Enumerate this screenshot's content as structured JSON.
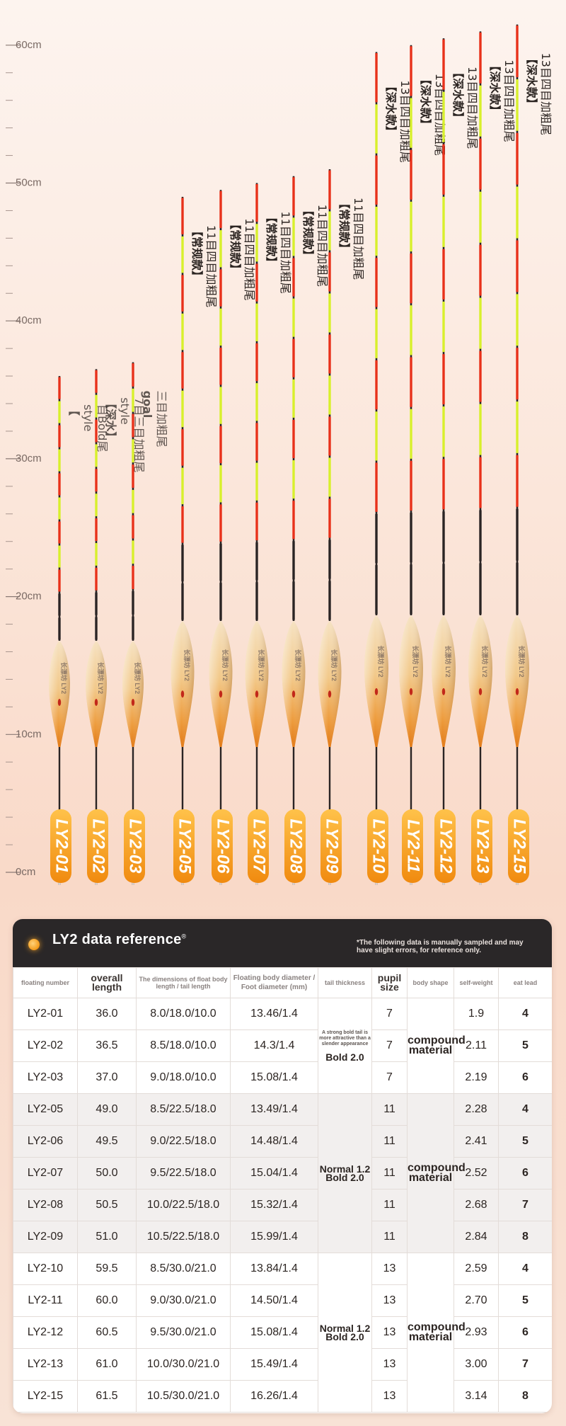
{
  "ruler": {
    "labels": [
      "60cm",
      "50cm",
      "40cm",
      "30cm",
      "20cm",
      "10cm",
      "0cm"
    ],
    "max_cm": 60
  },
  "floats": [
    {
      "model": "LY2-01",
      "height_cm": 36.0,
      "body": "short",
      "caption": [
        "【",
        "style",
        "目Bold尾"
      ],
      "blurred": true
    },
    {
      "model": "LY2-02",
      "height_cm": 36.5,
      "body": "short",
      "caption": [
        "【深水】",
        "style",
        "7目三目加粗尾"
      ],
      "blurred": true
    },
    {
      "model": "LY2-03",
      "height_cm": 37.0,
      "body": "short",
      "caption": [
        "goal",
        "三目加粗尾"
      ],
      "blurred": true
    },
    {
      "model": "LY2-05",
      "height_cm": 49.0,
      "body": "mid",
      "caption": [
        "【常规款】",
        "11目四目加粗尾"
      ]
    },
    {
      "model": "LY2-06",
      "height_cm": 49.5,
      "body": "mid",
      "caption": [
        "【常规款】",
        "11目四目加粗尾"
      ]
    },
    {
      "model": "LY2-07",
      "height_cm": 50.0,
      "body": "mid",
      "caption": [
        "【常规款】",
        "11目四目加粗尾"
      ]
    },
    {
      "model": "LY2-08",
      "height_cm": 50.5,
      "body": "mid",
      "caption": [
        "【常规款】",
        "11目四目加粗尾"
      ]
    },
    {
      "model": "LY2-09",
      "height_cm": 51.0,
      "body": "mid",
      "caption": [
        "【常规款】",
        "11目四目加粗尾"
      ]
    },
    {
      "model": "LY2-10",
      "height_cm": 59.5,
      "body": "long",
      "caption": [
        "【深水款】",
        "13目四目加粗尾"
      ]
    },
    {
      "model": "LY2-11",
      "height_cm": 60.0,
      "body": "long",
      "caption": [
        "【深水款】",
        "13目四目加粗尾"
      ]
    },
    {
      "model": "LY2-12",
      "height_cm": 60.5,
      "body": "long",
      "caption": [
        "【深水款】",
        "13目四目加粗尾"
      ]
    },
    {
      "model": "LY2-13",
      "height_cm": 61.0,
      "body": "long",
      "caption": [
        "【深水款】",
        "13目四目加粗尾"
      ]
    },
    {
      "model": "LY2-15",
      "height_cm": 61.5,
      "body": "long",
      "caption": [
        "【深水款】",
        "13目四目加粗尾"
      ]
    }
  ],
  "float_body_text": "长漂坊 LY2",
  "card": {
    "title": "LY2 data reference",
    "title_mark": "®",
    "note": "*The following data is manually sampled and may have slight errors, for reference only."
  },
  "table": {
    "headers": {
      "number": "floating number",
      "length": "overall length",
      "spec": "The dimensions of float body length / tail length",
      "diameter": "Floating body diameter / Foot diameter (mm)",
      "tail": "tail thickness",
      "pupil": "pupil size",
      "shape": "body shape",
      "weight": "self-weight",
      "lead": "eat lead"
    },
    "rows": [
      {
        "number": "LY2-01",
        "length": "36.0",
        "spec": "8.0/18.0/10.0",
        "diameter": "13.46/1.4",
        "pupil": "7",
        "weight": "1.9",
        "lead": "4"
      },
      {
        "number": "LY2-02",
        "length": "36.5",
        "spec": "8.5/18.0/10.0",
        "diameter": "14.3/1.4",
        "pupil": "7",
        "weight": "2.11",
        "lead": "5"
      },
      {
        "number": "LY2-03",
        "length": "37.0",
        "spec": "9.0/18.0/10.0",
        "diameter": "15.08/1.4",
        "pupil": "7",
        "weight": "2.19",
        "lead": "6"
      },
      {
        "number": "LY2-05",
        "length": "49.0",
        "spec": "8.5/22.5/18.0",
        "diameter": "13.49/1.4",
        "pupil": "11",
        "weight": "2.28",
        "lead": "4"
      },
      {
        "number": "LY2-06",
        "length": "49.5",
        "spec": "9.0/22.5/18.0",
        "diameter": "14.48/1.4",
        "pupil": "11",
        "weight": "2.41",
        "lead": "5"
      },
      {
        "number": "LY2-07",
        "length": "50.0",
        "spec": "9.5/22.5/18.0",
        "diameter": "15.04/1.4",
        "pupil": "11",
        "weight": "2.52",
        "lead": "6"
      },
      {
        "number": "LY2-08",
        "length": "50.5",
        "spec": "10.0/22.5/18.0",
        "diameter": "15.32/1.4",
        "pupil": "11",
        "weight": "2.68",
        "lead": "7"
      },
      {
        "number": "LY2-09",
        "length": "51.0",
        "spec": "10.5/22.5/18.0",
        "diameter": "15.99/1.4",
        "pupil": "11",
        "weight": "2.84",
        "lead": "8"
      },
      {
        "number": "LY2-10",
        "length": "59.5",
        "spec": "8.5/30.0/21.0",
        "diameter": "13.84/1.4",
        "pupil": "13",
        "weight": "2.59",
        "lead": "4"
      },
      {
        "number": "LY2-11",
        "length": "60.0",
        "spec": "9.0/30.0/21.0",
        "diameter": "14.50/1.4",
        "pupil": "13",
        "weight": "2.70",
        "lead": "5"
      },
      {
        "number": "LY2-12",
        "length": "60.5",
        "spec": "9.5/30.0/21.0",
        "diameter": "15.08/1.4",
        "pupil": "13",
        "weight": "2.93",
        "lead": "6"
      },
      {
        "number": "LY2-13",
        "length": "61.0",
        "spec": "10.0/30.0/21.0",
        "diameter": "15.49/1.4",
        "pupil": "13",
        "weight": "3.00",
        "lead": "7"
      },
      {
        "number": "LY2-15",
        "length": "61.5",
        "spec": "10.5/30.0/21.0",
        "diameter": "16.26/1.4",
        "pupil": "13",
        "weight": "3.14",
        "lead": "8"
      }
    ],
    "groups": [
      {
        "tail_small": "A strong bold tail is more attractive than a slender appearance",
        "tail": "Bold 2.0",
        "shape": "compound material"
      },
      {
        "tail_small": "",
        "tail": "Normal 1.2 Bold 2.0",
        "shape": "compound material"
      },
      {
        "tail_small": "",
        "tail": "Normal 1.2 Bold 2.0",
        "shape": "compound material"
      }
    ]
  }
}
